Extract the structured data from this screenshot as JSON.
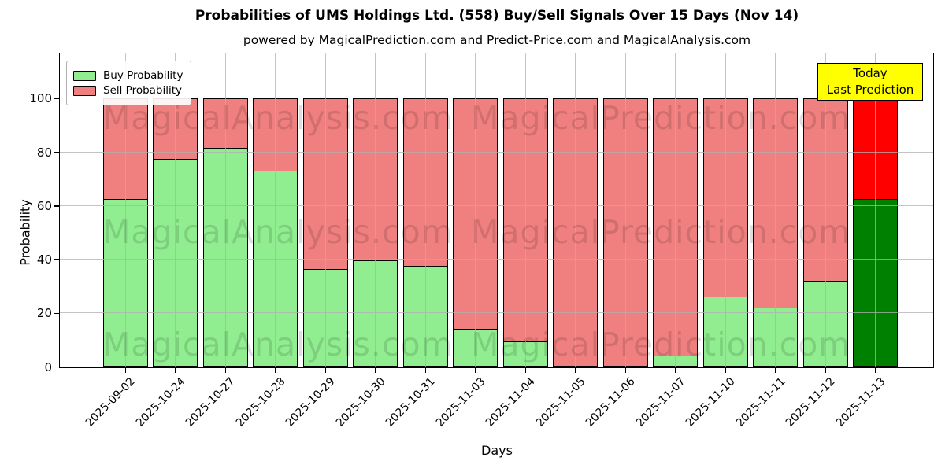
{
  "chart_data": {
    "type": "bar",
    "stacked": true,
    "title": "Probabilities of UMS Holdings Ltd. (558) Buy/Sell Signals Over 15 Days (Nov 14)",
    "subtitle": "powered by MagicalPrediction.com and Predict-Price.com and MagicalAnalysis.com",
    "xlabel": "Days",
    "ylabel": "Probability",
    "ylim": [
      0,
      116.7
    ],
    "yticks": [
      0,
      20,
      40,
      60,
      80,
      100
    ],
    "grid": true,
    "dashed_line_y": 110,
    "legend_position": "upper left",
    "categories": [
      "2025-09-02",
      "2025-10-24",
      "2025-10-27",
      "2025-10-28",
      "2025-10-29",
      "2025-10-30",
      "2025-10-31",
      "2025-11-03",
      "2025-11-04",
      "2025-11-05",
      "2025-11-06",
      "2025-11-07",
      "2025-11-10",
      "2025-11-11",
      "2025-11-12",
      "2025-11-13"
    ],
    "series": [
      {
        "name": "Buy Probability",
        "color": "#90ee90",
        "final_bar_color": "#008000",
        "values": [
          62.5,
          77.5,
          81.5,
          73,
          36.5,
          39.5,
          37.5,
          14,
          9.5,
          0,
          0,
          4,
          26,
          22,
          32,
          62.5
        ]
      },
      {
        "name": "Sell Probability",
        "color": "#f08080",
        "final_bar_color": "#ff0000",
        "values": [
          37.5,
          22.5,
          18.5,
          27,
          63.5,
          60.5,
          62.5,
          86,
          90.5,
          100,
          100,
          96,
          74,
          78,
          68,
          37.5
        ]
      }
    ],
    "legend": [
      {
        "label": "Buy Probability",
        "color": "#90ee90"
      },
      {
        "label": "Sell Probability",
        "color": "#f08080"
      }
    ],
    "annotation": {
      "lines": [
        "Today",
        "Last Prediction"
      ],
      "bg_color": "#ffff00",
      "applies_to_category": "2025-11-13"
    },
    "watermarks": [
      "MagicalAnalysis.com",
      "MagicalPrediction.com"
    ],
    "colors": {
      "grid": "#b0b0b0",
      "dashed_line": "#7f7f7f",
      "bar_edge": "#000000",
      "background": "#ffffff"
    }
  }
}
